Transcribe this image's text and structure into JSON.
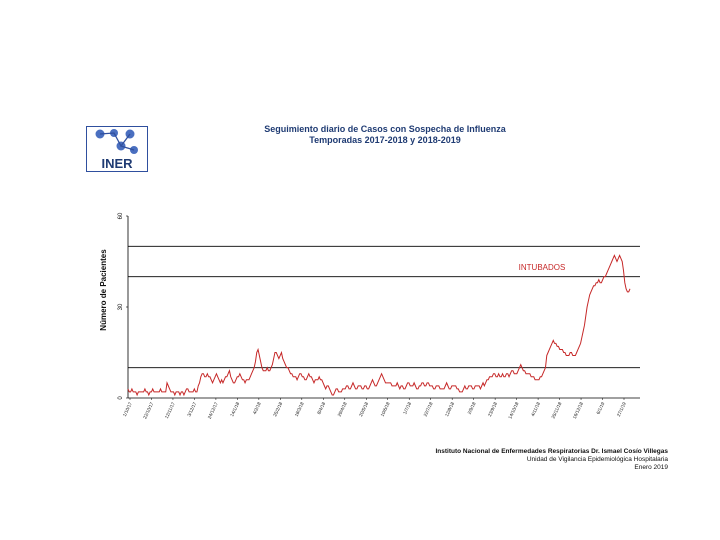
{
  "logo": {
    "text": "INER"
  },
  "header": {
    "title_line1": "Seguimiento diario de Casos con Sospecha de Influenza",
    "title_line2": "Temporadas 2017-2018 y 2018-2019"
  },
  "footer": {
    "line1": "Instituto Nacional de Enfermedades Respiratorias Dr. Ismael Cosío Villegas",
    "line2": "Unidad de Vigilancia Epidemiológica Hospitalaria",
    "line3": "Enero 2019"
  },
  "colors": {
    "series": "#c62828",
    "title": "#1f3b73",
    "axis": "#000000",
    "logo_blue": "#2f4f9e"
  },
  "chart_data": {
    "type": "line",
    "title": "",
    "ylabel": "Número de Pacientes",
    "xlabel": "",
    "ylim": [
      0,
      60
    ],
    "yticks": [
      0,
      30,
      60
    ],
    "hlines": [
      10,
      40,
      50
    ],
    "annotation": "INTUBADOS",
    "grid": false,
    "x_tick_labels": [
      "1/10/17",
      "22/10/17",
      "12/11/17",
      "3/12/17",
      "24/12/17",
      "14/1/18",
      "4/2/18",
      "25/2/18",
      "18/3/18",
      "8/4/18",
      "29/4/18",
      "20/5/18",
      "10/6/18",
      "1/7/18",
      "22/7/18",
      "12/8/18",
      "2/9/18",
      "23/9/18",
      "14/10/18",
      "4/11/18",
      "25/11/18",
      "16/12/18",
      "6/1/19",
      "27/1/19"
    ],
    "series": [
      {
        "values": [
          3,
          2,
          2,
          3,
          2,
          2,
          2,
          1,
          2,
          2,
          2,
          2,
          2,
          3,
          2,
          2,
          1,
          2,
          2,
          3,
          2,
          2,
          2,
          2,
          2,
          3,
          2,
          2,
          2,
          2,
          5,
          4,
          3,
          2,
          2,
          2,
          1,
          2,
          2,
          2,
          1,
          2,
          2,
          1,
          2,
          3,
          3,
          2,
          2,
          2,
          2,
          3,
          2,
          2,
          4,
          5,
          7,
          8,
          8,
          7,
          7,
          8,
          7,
          7,
          6,
          5,
          6,
          7,
          8,
          7,
          6,
          5,
          6,
          5,
          6,
          7,
          7,
          8,
          9,
          7,
          6,
          5,
          5,
          6,
          7,
          7,
          8,
          7,
          6,
          6,
          5,
          6,
          6,
          6,
          7,
          8,
          9,
          10,
          12,
          15,
          16,
          14,
          12,
          10,
          9,
          9,
          9,
          10,
          9,
          9,
          10,
          11,
          13,
          15,
          15,
          14,
          13,
          14,
          15,
          13,
          12,
          11,
          10,
          10,
          9,
          8,
          8,
          7,
          7,
          7,
          6,
          7,
          8,
          8,
          7,
          7,
          6,
          6,
          7,
          8,
          7,
          7,
          6,
          5,
          6,
          6,
          6,
          7,
          6,
          6,
          5,
          4,
          3,
          4,
          4,
          3,
          2,
          1,
          1,
          2,
          3,
          3,
          2,
          2,
          2,
          3,
          3,
          3,
          4,
          4,
          3,
          3,
          4,
          5,
          4,
          3,
          3,
          4,
          4,
          4,
          3,
          3,
          4,
          4,
          3,
          3,
          4,
          5,
          6,
          5,
          4,
          4,
          5,
          6,
          7,
          8,
          7,
          6,
          5,
          5,
          5,
          5,
          5,
          4,
          4,
          4,
          4,
          5,
          4,
          3,
          4,
          4,
          3,
          3,
          4,
          5,
          5,
          4,
          4,
          4,
          5,
          4,
          3,
          3,
          4,
          4,
          5,
          5,
          4,
          4,
          5,
          5,
          4,
          4,
          4,
          3,
          3,
          4,
          4,
          4,
          3,
          3,
          3,
          3,
          4,
          5,
          4,
          3,
          3,
          4,
          4,
          4,
          4,
          3,
          3,
          2,
          2,
          2,
          3,
          4,
          3,
          3,
          4,
          4,
          4,
          3,
          3,
          4,
          4,
          4,
          4,
          3,
          4,
          5,
          4,
          5,
          6,
          6,
          7,
          7,
          7,
          8,
          8,
          7,
          7,
          8,
          7,
          7,
          8,
          7,
          7,
          8,
          8,
          7,
          8,
          9,
          9,
          8,
          8,
          8,
          9,
          10,
          11,
          10,
          9,
          9,
          8,
          8,
          8,
          8,
          7,
          7,
          7,
          6,
          6,
          6,
          6,
          7,
          7,
          8,
          9,
          10,
          14,
          15,
          16,
          17,
          18,
          19,
          18,
          18,
          17,
          17,
          16,
          16,
          16,
          15,
          15,
          14,
          14,
          14,
          15,
          15,
          14,
          14,
          14,
          15,
          16,
          17,
          18,
          20,
          22,
          24,
          27,
          30,
          32,
          34,
          35,
          36,
          37,
          37,
          38,
          38,
          39,
          38,
          38,
          39,
          40,
          40,
          41,
          42,
          43,
          44,
          45,
          46,
          47,
          46,
          45,
          46,
          47,
          46,
          45,
          42,
          38,
          36,
          35,
          35,
          36
        ]
      }
    ]
  }
}
